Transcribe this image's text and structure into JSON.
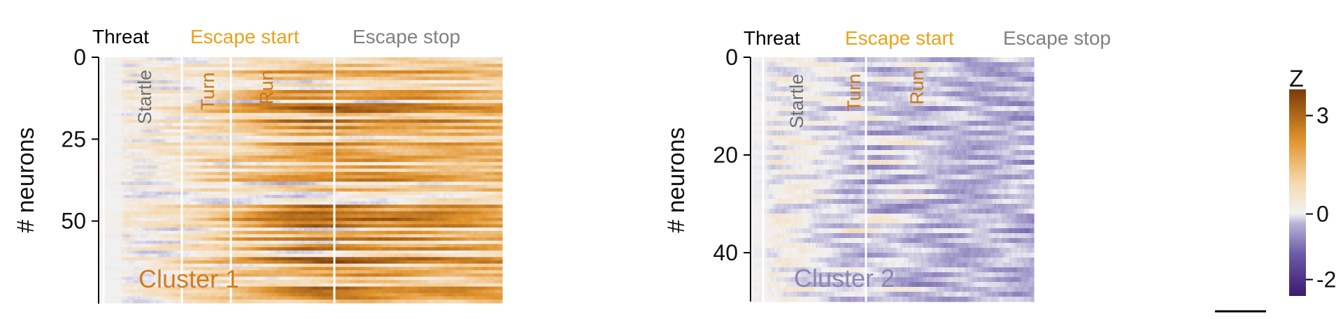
{
  "colors": {
    "threat": "#000000",
    "escape_start": "#e8a317",
    "escape_stop": "#808080",
    "startle": "#707070",
    "turn_run": "#c8781c",
    "cluster1": "#d17c22",
    "cluster2": "#8c86b4",
    "cmap_high": "#7a3b08",
    "cmap_mid": "#f2f2f2",
    "cmap_low": "#3d1a6e"
  },
  "chart_data": [
    {
      "type": "heatmap",
      "title": "Cluster 1",
      "ylabel": "# neurons",
      "yticks": [
        "0",
        "25",
        "50"
      ],
      "ytick_values": [
        0,
        25,
        50
      ],
      "ylim": [
        0,
        75
      ],
      "n_rows": 75,
      "n_cols": 150,
      "events": [
        {
          "label": "Threat",
          "col": 0,
          "color_key": "threat"
        },
        {
          "label": "Escape start",
          "col": 53,
          "color_key": "escape_start"
        },
        {
          "label": "Escape stop",
          "col": 90,
          "color_key": "escape_stop"
        }
      ],
      "phases": [
        {
          "label": "Startle",
          "col": 8,
          "color_key": "startle"
        },
        {
          "label": "Turn",
          "col": 35,
          "color_key": "turn_run"
        },
        {
          "label": "Run",
          "col": 53,
          "color_key": "turn_run"
        }
      ],
      "bias": 1.3,
      "peak_col": 80,
      "seed": 11
    },
    {
      "type": "heatmap",
      "title": "Cluster 2",
      "ylabel": "# neurons",
      "yticks": [
        "0",
        "20",
        "40"
      ],
      "ytick_values": [
        0,
        20,
        40
      ],
      "ylim": [
        0,
        50
      ],
      "n_rows": 50,
      "n_cols": 150,
      "events": [
        {
          "label": "Threat",
          "col": 0,
          "color_key": "threat"
        },
        {
          "label": "Escape start",
          "col": 53,
          "color_key": "escape_start"
        },
        {
          "label": "Escape stop",
          "col": 90,
          "color_key": "escape_stop"
        }
      ],
      "phases": [
        {
          "label": "Startle",
          "col": 8,
          "color_key": "startle"
        },
        {
          "label": "Turn",
          "col": 35,
          "color_key": "turn_run"
        },
        {
          "label": "Run",
          "col": 53,
          "color_key": "turn_run"
        }
      ],
      "bias": -0.7,
      "peak_col": 80,
      "seed": 29
    }
  ],
  "colorbar": {
    "label": "Z",
    "ticks": [
      "3",
      "0",
      "-2"
    ],
    "tick_values": [
      3,
      0,
      -2
    ],
    "range": [
      -2.5,
      3.8
    ]
  }
}
